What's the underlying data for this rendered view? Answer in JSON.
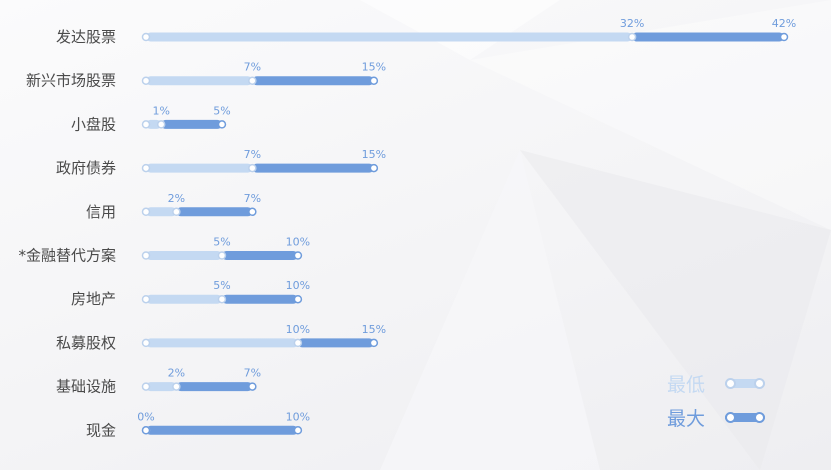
{
  "colors": {
    "min_bar": "#c4d9f2",
    "max_bar": "#6f9cdc",
    "label": "#6f9cdc",
    "category_text": "#4a4a4a"
  },
  "legend": {
    "min_label": "最低",
    "max_label": "最大"
  },
  "chart_data": {
    "type": "bar",
    "orientation": "horizontal-range",
    "x_range": [
      0,
      42
    ],
    "categories": [
      "发达股票",
      "新兴市场股票",
      "小盘股",
      "政府债券",
      "信用",
      "*金融替代方案",
      "房地产",
      "私募股权",
      "基础设施",
      "现金"
    ],
    "series": [
      {
        "name": "最低",
        "values": [
          32,
          7,
          1,
          7,
          2,
          5,
          5,
          10,
          2,
          0
        ]
      },
      {
        "name": "最大",
        "values": [
          42,
          15,
          5,
          15,
          7,
          10,
          10,
          15,
          7,
          10
        ]
      }
    ],
    "value_labels": {
      "min": [
        "32%",
        "7%",
        "1%",
        "7%",
        "2%",
        "5%",
        "5%",
        "10%",
        "2%",
        "0%"
      ],
      "max": [
        "42%",
        "15%",
        "5%",
        "15%",
        "7%",
        "10%",
        "10%",
        "15%",
        "7%",
        "10%"
      ]
    }
  }
}
